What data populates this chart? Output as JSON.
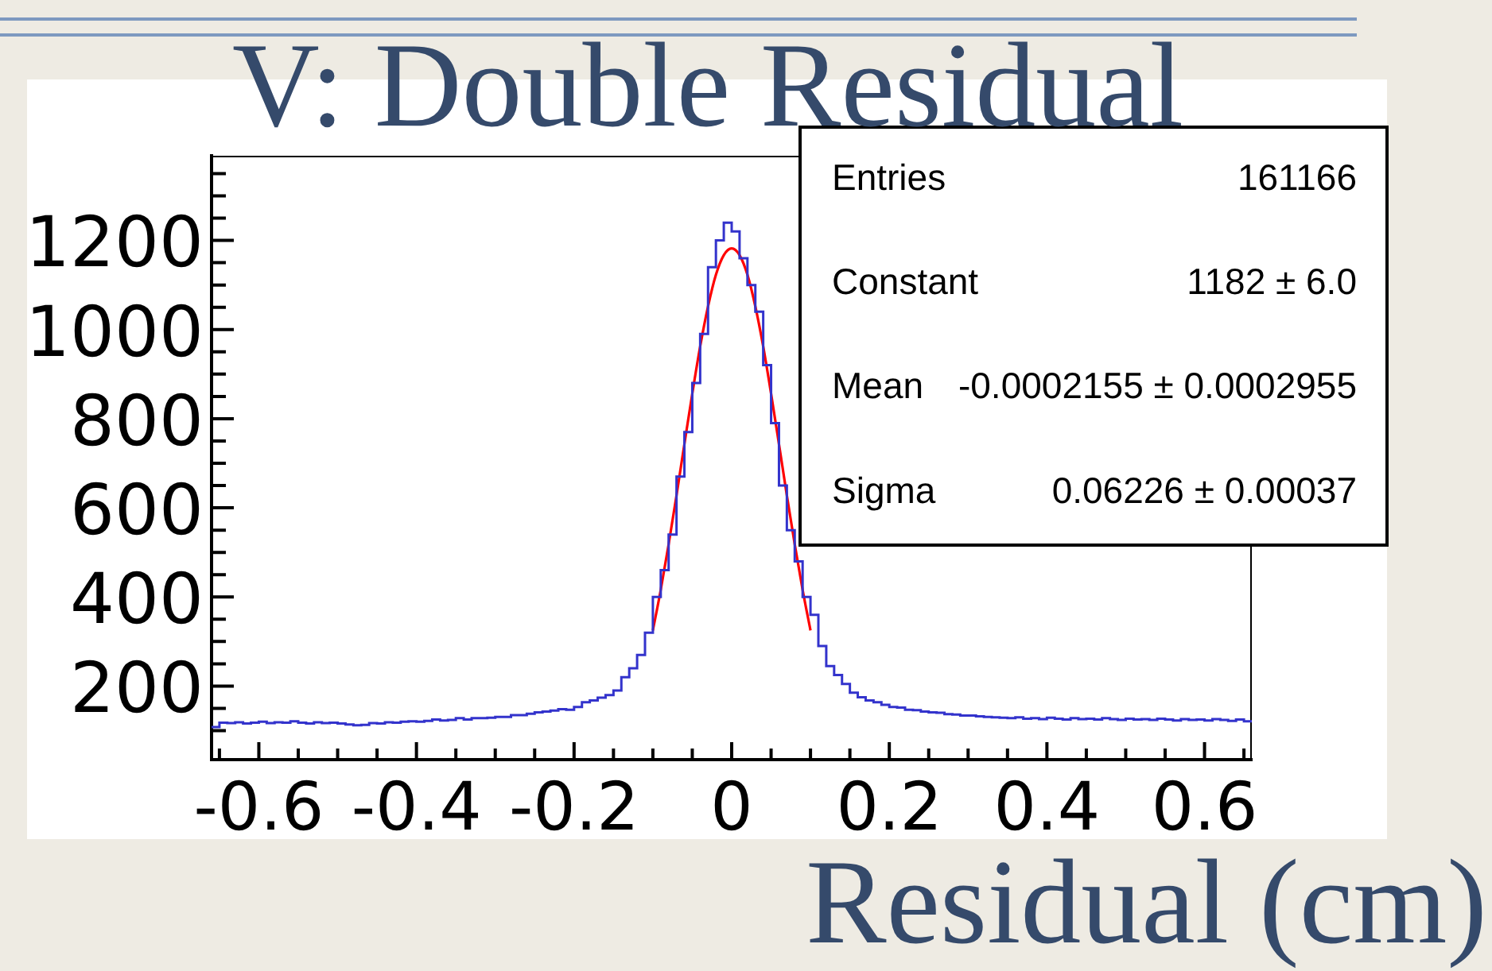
{
  "chart_data": {
    "type": "histogram",
    "title": "V: Double Residual",
    "xlabel": "Residual (cm)",
    "bins": [
      -0.66,
      -0.65,
      -0.64,
      -0.63,
      -0.62,
      -0.61,
      -0.6,
      -0.59,
      -0.58,
      -0.57,
      -0.56,
      -0.55,
      -0.54,
      -0.53,
      -0.52,
      -0.51,
      -0.5,
      -0.49,
      -0.48,
      -0.47,
      -0.46,
      -0.45,
      -0.44,
      -0.43,
      -0.42,
      -0.41,
      -0.4,
      -0.39,
      -0.38,
      -0.37,
      -0.36,
      -0.35,
      -0.34,
      -0.33,
      -0.32,
      -0.31,
      -0.3,
      -0.29,
      -0.28,
      -0.27,
      -0.26,
      -0.25,
      -0.24,
      -0.23,
      -0.22,
      -0.21,
      -0.2,
      -0.19,
      -0.18,
      -0.17,
      -0.16,
      -0.15,
      -0.14,
      -0.13,
      -0.12,
      -0.11,
      -0.1,
      -0.09,
      -0.08,
      -0.07,
      -0.06,
      -0.05,
      -0.04,
      -0.03,
      -0.02,
      -0.01,
      0,
      0.01,
      0.02,
      0.03,
      0.04,
      0.05,
      0.06,
      0.07,
      0.08,
      0.09,
      0.1,
      0.11,
      0.12,
      0.13,
      0.14,
      0.15,
      0.16,
      0.17,
      0.18,
      0.19,
      0.2,
      0.21,
      0.22,
      0.23,
      0.24,
      0.25,
      0.26,
      0.27,
      0.28,
      0.29,
      0.3,
      0.31,
      0.32,
      0.33,
      0.34,
      0.35,
      0.36,
      0.37,
      0.38,
      0.39,
      0.4,
      0.41,
      0.42,
      0.43,
      0.44,
      0.45,
      0.46,
      0.47,
      0.48,
      0.49,
      0.5,
      0.51,
      0.52,
      0.53,
      0.54,
      0.55,
      0.56,
      0.57,
      0.58,
      0.59,
      0.6,
      0.61,
      0.62,
      0.63,
      0.64,
      0.65,
      0.66
    ],
    "series": [
      {
        "color": "#3333cc",
        "values": [
          108,
          118,
          117,
          119,
          116,
          118,
          120,
          117,
          119,
          118,
          121,
          118,
          116,
          119,
          117,
          118,
          116,
          114,
          112,
          113,
          117,
          116,
          119,
          118,
          120,
          121,
          120,
          122,
          125,
          123,
          124,
          128,
          125,
          128,
          128,
          129,
          131,
          131,
          135,
          135,
          138,
          141,
          143,
          145,
          148,
          147,
          153,
          164,
          168,
          174,
          180,
          190,
          220,
          240,
          270,
          320,
          400,
          460,
          540,
          670,
          770,
          880,
          990,
          1140,
          1200,
          1240,
          1220,
          1160,
          1100,
          1040,
          920,
          790,
          650,
          550,
          480,
          400,
          360,
          290,
          245,
          225,
          205,
          185,
          175,
          168,
          164,
          158,
          153,
          152,
          147,
          146,
          143,
          141,
          140,
          137,
          136,
          134,
          134,
          132,
          131,
          130,
          129,
          128,
          130,
          127,
          128,
          126,
          129,
          127,
          125,
          128,
          126,
          127,
          125,
          128,
          126,
          124,
          127,
          125,
          126,
          124,
          127,
          125,
          123,
          126,
          124,
          125,
          123,
          126,
          124,
          122,
          125,
          121
        ]
      },
      {
        "type": "line",
        "color": "#ff0000",
        "x": [
          -0.1,
          -0.09,
          -0.08,
          -0.07,
          -0.06,
          -0.05,
          -0.04,
          -0.03,
          -0.02,
          -0.01,
          0,
          0.01,
          0.02,
          0.03,
          0.04,
          0.05,
          0.06,
          0.07,
          0.08,
          0.09,
          0.1
        ],
        "values": [
          325,
          416,
          518,
          628,
          743,
          856,
          962,
          1052,
          1123,
          1167,
          1182,
          1167,
          1123,
          1052,
          962,
          856,
          743,
          628,
          518,
          416,
          325
        ]
      }
    ],
    "xlim": [
      -0.66,
      0.66
    ],
    "xticks": [
      {
        "value": -0.65,
        "label": null
      },
      -0.6,
      {
        "value": -0.55,
        "label": null
      },
      {
        "value": -0.5,
        "label": null
      },
      {
        "value": -0.45,
        "label": null
      },
      -0.4,
      {
        "value": -0.35,
        "label": null
      },
      {
        "value": -0.3,
        "label": null
      },
      {
        "value": -0.25,
        "label": null
      },
      -0.2,
      {
        "value": -0.15,
        "label": null
      },
      {
        "value": -0.1,
        "label": null
      },
      {
        "value": -0.05,
        "label": null
      },
      0,
      {
        "value": 0.05,
        "label": null
      },
      {
        "value": 0.1,
        "label": null
      },
      {
        "value": 0.15,
        "label": null
      },
      0.2,
      {
        "value": 0.25,
        "label": null
      },
      {
        "value": 0.3,
        "label": null
      },
      {
        "value": 0.35,
        "label": null
      },
      0.4,
      {
        "value": 0.45,
        "label": null
      },
      {
        "value": 0.5,
        "label": null
      },
      {
        "value": 0.55,
        "label": null
      },
      0.6,
      {
        "value": 0.65,
        "label": null
      }
    ],
    "ylim": [
      35,
      1390
    ],
    "yticks": [
      {
        "value": 100,
        "label": null
      },
      {
        "value": 150,
        "label": null
      },
      200,
      {
        "value": 250,
        "label": null
      },
      {
        "value": 300,
        "label": null
      },
      {
        "value": 350,
        "label": null
      },
      400,
      {
        "value": 450,
        "label": null
      },
      {
        "value": 500,
        "label": null
      },
      {
        "value": 550,
        "label": null
      },
      600,
      {
        "value": 650,
        "label": null
      },
      {
        "value": 700,
        "label": null
      },
      {
        "value": 750,
        "label": null
      },
      800,
      {
        "value": 850,
        "label": null
      },
      {
        "value": 900,
        "label": null
      },
      {
        "value": 950,
        "label": null
      },
      1000,
      {
        "value": 1050,
        "label": null
      },
      {
        "value": 1100,
        "label": null
      },
      {
        "value": 1150,
        "label": null
      },
      1200,
      {
        "value": 1250,
        "label": null
      },
      {
        "value": 1300,
        "label": null
      },
      {
        "value": 1350,
        "label": null
      }
    ],
    "annotations": [
      "Entries",
      "161166",
      "Constant",
      "1182 ± 6.0",
      "Mean",
      "-0.0002155 ± 0.0002955",
      "Sigma",
      "0.06226 ± 0.00037"
    ]
  }
}
